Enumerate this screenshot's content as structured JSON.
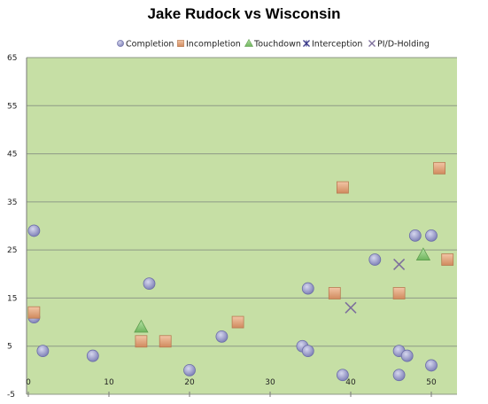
{
  "chart_data": {
    "type": "scatter",
    "title": "Jake Rudock vs Wisconsin",
    "xlabel": "",
    "ylabel": "",
    "xlim": [
      0,
      53
    ],
    "ylim": [
      -5,
      65
    ],
    "xticks": [
      0,
      10,
      20,
      30,
      40,
      50
    ],
    "yticks": [
      -5,
      5,
      15,
      25,
      35,
      45,
      55,
      65
    ],
    "grid": "horizontal",
    "legend_position": "top",
    "plot_background": "#c6dfa5",
    "series": [
      {
        "name": "Completion",
        "marker": "circle",
        "color": "#9a9ccc",
        "points": [
          [
            0.7,
            29
          ],
          [
            0.7,
            11
          ],
          [
            1.8,
            4
          ],
          [
            8,
            3
          ],
          [
            15,
            18
          ],
          [
            20,
            0
          ],
          [
            24,
            7
          ],
          [
            34,
            5
          ],
          [
            34.7,
            17
          ],
          [
            34.7,
            4
          ],
          [
            39,
            -1
          ],
          [
            43,
            23
          ],
          [
            46,
            -1
          ],
          [
            46,
            4
          ],
          [
            47,
            3
          ],
          [
            48,
            28
          ],
          [
            50,
            28
          ],
          [
            50,
            1
          ]
        ]
      },
      {
        "name": "Incompletion",
        "marker": "square",
        "color": "#e0a882",
        "points": [
          [
            0.7,
            12
          ],
          [
            14,
            6
          ],
          [
            17,
            6
          ],
          [
            26,
            10
          ],
          [
            38,
            16
          ],
          [
            39,
            38
          ],
          [
            46,
            16
          ],
          [
            51,
            42
          ],
          [
            52,
            23
          ]
        ]
      },
      {
        "name": "Touchdown",
        "marker": "triangle",
        "color": "#8ccc7a",
        "points": [
          [
            14,
            9
          ],
          [
            49,
            24
          ]
        ]
      },
      {
        "name": "Interception",
        "marker": "star-x",
        "color": "#3b3b8a",
        "points": []
      },
      {
        "name": "PI/D-Holding",
        "marker": "x",
        "color": "#7d6f9c",
        "points": [
          [
            40,
            13
          ],
          [
            46,
            22
          ]
        ]
      }
    ]
  }
}
